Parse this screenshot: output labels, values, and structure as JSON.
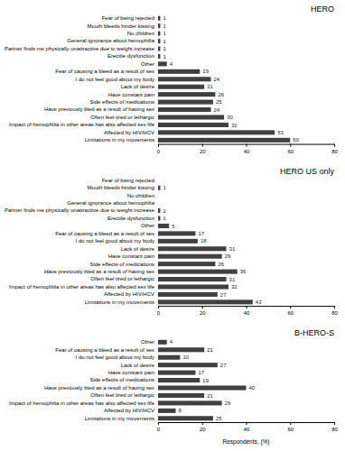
{
  "chart_data": [
    {
      "type": "bar",
      "orientation": "horizontal",
      "title": "HERO",
      "categories": [
        "Fear of being rejected",
        "Mouth bleeds hinder kissing",
        "No children",
        "General ignorance about hemophilia",
        "Partner finds me physically unattractive due to weight increase",
        "Erectile dysfunction",
        "Other",
        "Fear of causing a bleed as a result of sex",
        "I do not feel good about my body",
        "Lack of desire",
        "Have constant pain",
        "Side effects of medications",
        "Have previously bled as a result of having sex",
        "Often feel tired or lethargic",
        "Impact of hemophilia in other areas has also affected sex life",
        "Affected by HIV/HCV",
        "Limitations in my movements"
      ],
      "values": [
        1,
        1,
        1,
        1,
        1,
        1,
        4,
        19,
        24,
        21,
        26,
        25,
        24,
        30,
        32,
        53,
        60
      ],
      "color": "#404040",
      "xlim": [
        0,
        80
      ],
      "xticks": [
        0,
        20,
        40,
        60,
        80
      ],
      "data_labels": true,
      "grid": false
    },
    {
      "type": "bar",
      "orientation": "horizontal",
      "title": "HERO US only",
      "categories": [
        "Fear of being rejected",
        "Mouth bleeds hinder kissing",
        "No children",
        "General ignorance about hemophilia",
        "Partner finds me physically unattractive due to weight increase",
        "Erectile dysfunction",
        "Other",
        "Fear of causing a bleed as a result of sex",
        "I do not feel good about my body",
        "Lack of desire",
        "Have constant pain",
        "Side effects of medications",
        "Have previously bled as a result of having sex",
        "Often feel tired or lethargic",
        "Impact of hemophilia in other areas has also affected sex life",
        "Affected by HIV/HCV",
        "Limitations in my movements"
      ],
      "values": [
        0,
        1,
        0,
        0,
        1,
        1,
        5,
        17,
        18,
        31,
        29,
        26,
        36,
        31,
        32,
        27,
        43
      ],
      "value_labels": [
        null,
        "1",
        null,
        null,
        "1",
        "1",
        "5",
        "17",
        "18",
        "31",
        "29",
        "26",
        "36",
        "31",
        "32",
        "27",
        "43"
      ],
      "color": "#404040",
      "xlim": [
        0,
        80
      ],
      "xticks": [
        0,
        20,
        40,
        60,
        80
      ],
      "data_labels": true,
      "grid": false
    },
    {
      "type": "bar",
      "orientation": "horizontal",
      "title": "B-HERO-S",
      "categories": [
        "Other",
        "Fear of causing a bleed as a result of sex",
        "I do not feel good about my body",
        "Lack of desire",
        "Have constant pain",
        "Side effects of medications",
        "Have previously bled as a result of having sex",
        "Often feel tired or lethargic",
        "Impact of hemophilia in other areas has also affected sex life",
        "Affected by HIV/HCV",
        "Limitations in my movements"
      ],
      "values": [
        4,
        21,
        10,
        27,
        17,
        19,
        40,
        21,
        29,
        8,
        25
      ],
      "color": "#404040",
      "xlim": [
        0,
        80
      ],
      "xticks": [
        0,
        20,
        40,
        60,
        80
      ],
      "xlabel": "Respondents, (%)",
      "data_labels": true,
      "grid": false
    }
  ]
}
